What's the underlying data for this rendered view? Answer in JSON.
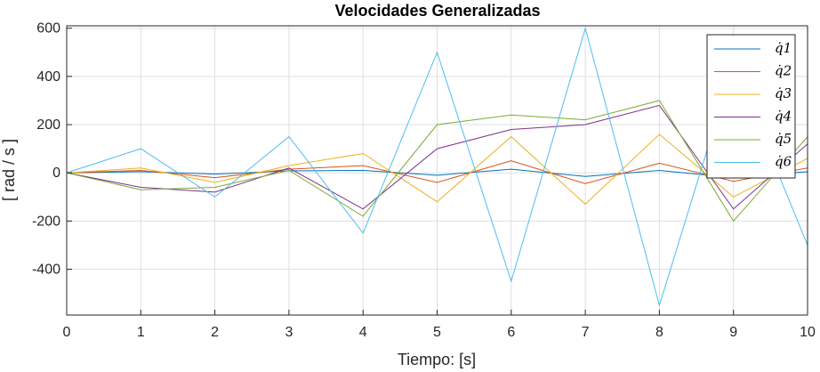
{
  "chart_data": {
    "type": "line",
    "title": "Velocidades Generalizadas",
    "xlabel": "Tiempo: [s]",
    "ylabel": "[ rad / s ]",
    "xlim": [
      0,
      10
    ],
    "ylim": [
      -590,
      610
    ],
    "xticks": [
      0,
      1,
      2,
      3,
      4,
      5,
      6,
      7,
      8,
      9,
      10
    ],
    "yticks": [
      -400,
      -200,
      0,
      200,
      400,
      600
    ],
    "xtick_labels": [
      "0",
      "1",
      "2",
      "3",
      "4",
      "5",
      "6",
      "7",
      "8",
      "9",
      "10"
    ],
    "ytick_labels": [
      "-400",
      "-200",
      "0",
      "200",
      "400",
      "600"
    ],
    "grid": true,
    "legend_position": "top-right",
    "series": [
      {
        "name": "q̇1",
        "color": "#0072BD",
        "x": [
          0,
          1,
          2,
          3,
          4,
          5,
          6,
          7,
          8,
          9,
          10
        ],
        "values": [
          0,
          5,
          -5,
          8,
          10,
          -10,
          15,
          -15,
          10,
          -20,
          5
        ]
      },
      {
        "name": "q̇2",
        "color": "#D95319",
        "x": [
          0,
          1,
          2,
          3,
          4,
          5,
          6,
          7,
          8,
          9,
          10
        ],
        "values": [
          0,
          10,
          -20,
          15,
          30,
          -40,
          50,
          -45,
          40,
          -35,
          20
        ]
      },
      {
        "name": "q̇3",
        "color": "#EDB120",
        "x": [
          0,
          1,
          2,
          3,
          4,
          5,
          6,
          7,
          8,
          9,
          10
        ],
        "values": [
          0,
          20,
          -40,
          30,
          80,
          -120,
          150,
          -130,
          160,
          -100,
          60
        ]
      },
      {
        "name": "q̇4",
        "color": "#7E2F8E",
        "x": [
          0,
          1,
          2,
          3,
          4,
          5,
          6,
          7,
          8,
          9,
          10
        ],
        "values": [
          0,
          -60,
          -80,
          20,
          -150,
          100,
          180,
          200,
          280,
          -150,
          120
        ]
      },
      {
        "name": "q̇5",
        "color": "#77AC30",
        "x": [
          0,
          1,
          2,
          3,
          4,
          5,
          6,
          7,
          8,
          9,
          10
        ],
        "values": [
          0,
          -70,
          -60,
          10,
          -180,
          200,
          240,
          220,
          300,
          -200,
          150
        ]
      },
      {
        "name": "q̇6",
        "color": "#4DBEEE",
        "x": [
          0,
          1,
          2,
          3,
          4,
          5,
          6,
          7,
          8,
          9,
          10
        ],
        "values": [
          0,
          100,
          -100,
          150,
          -250,
          500,
          -450,
          600,
          -550,
          450,
          -300
        ]
      }
    ]
  }
}
